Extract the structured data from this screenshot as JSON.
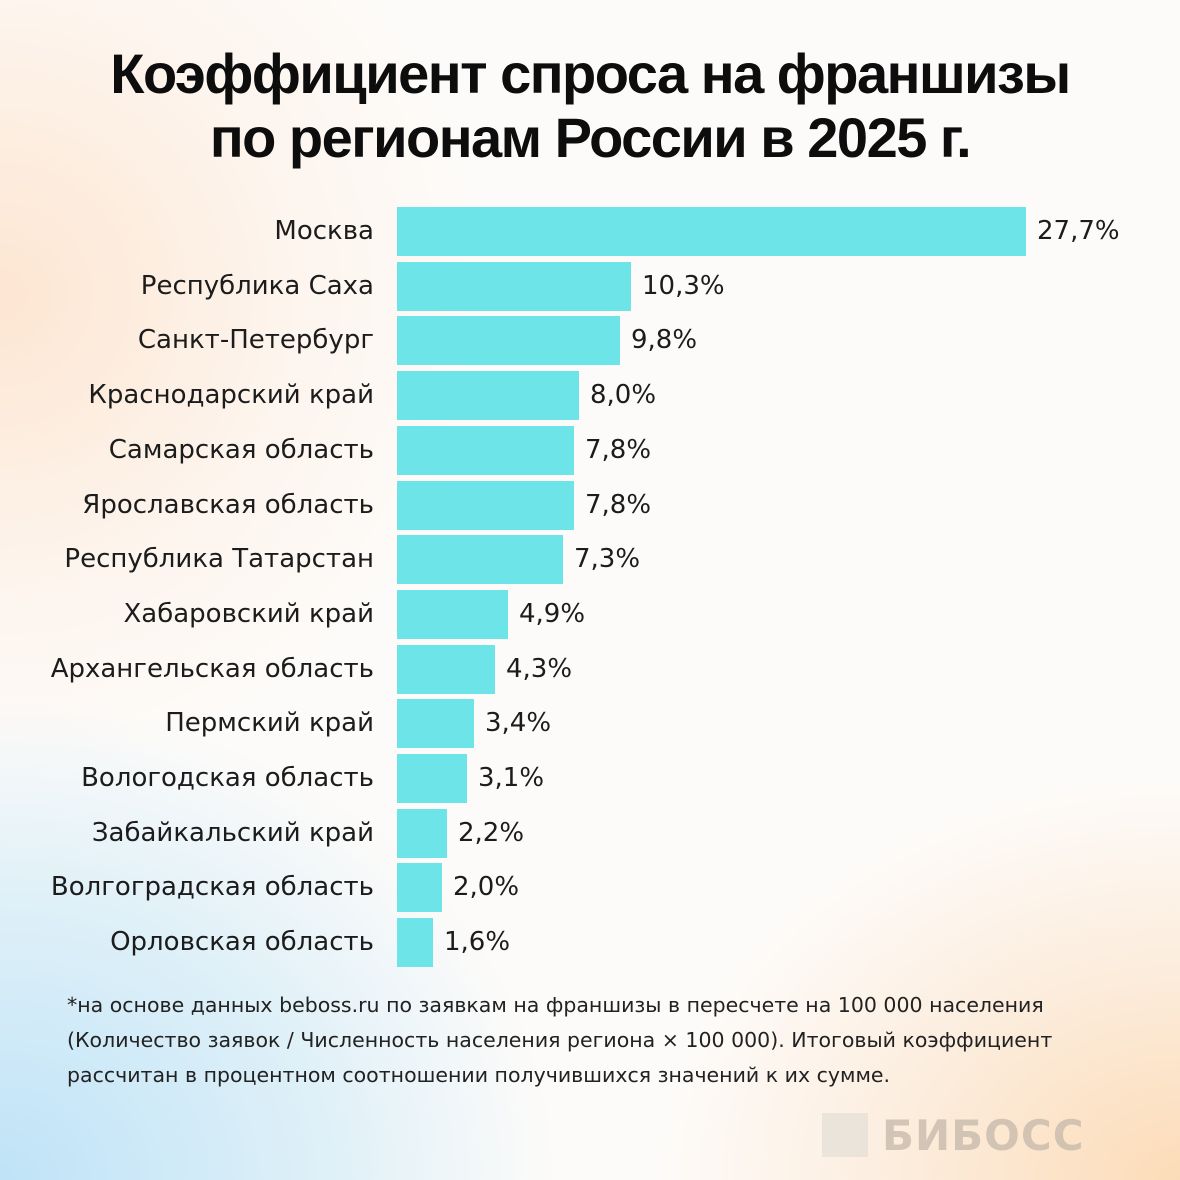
{
  "title": {
    "line1": "Коэффициент спроса на франшизы",
    "line2": "по регионам России в 2025 г."
  },
  "colors": {
    "bar": "#6de4e8",
    "text": "#1c1c1c"
  },
  "chart_data": {
    "type": "bar",
    "orientation": "horizontal",
    "title": "Коэффициент спроса на франшизы по регионам России в 2025 г.",
    "xlabel": "",
    "ylabel": "",
    "grid": false,
    "legend": null,
    "categories": [
      "Москва",
      "Республика Саха",
      "Санкт-Петербург",
      "Краснодарский край",
      "Самарская область",
      "Ярославская область",
      "Республика Татарстан",
      "Хабаровский край",
      "Архангельская область",
      "Пермский край",
      "Вологодская область",
      "Забайкальский край",
      "Волгоградская область",
      "Орловская область"
    ],
    "values": [
      27.7,
      10.3,
      9.8,
      8.0,
      7.8,
      7.8,
      7.3,
      4.9,
      4.3,
      3.4,
      3.1,
      2.2,
      2.0,
      1.6
    ],
    "value_labels": [
      "27,7%",
      "10,3%",
      "9,8%",
      "8,0%",
      "7,8%",
      "7,8%",
      "7,3%",
      "4,9%",
      "4,3%",
      "3,4%",
      "3,1%",
      "2,2%",
      "2,0%",
      "1,6%"
    ],
    "unit": "%"
  },
  "footnote": {
    "line1": "*на основе данных beboss.ru по заявкам на франшизы в пересчете на 100 000 населения",
    "line2": "(Количество заявок / Численность населения региона × 100 000). Итоговый коэффициент",
    "line3": "рассчитан в процентном соотношении получившихся значений к их сумме."
  },
  "logo": {
    "text": "БИБОСС"
  }
}
